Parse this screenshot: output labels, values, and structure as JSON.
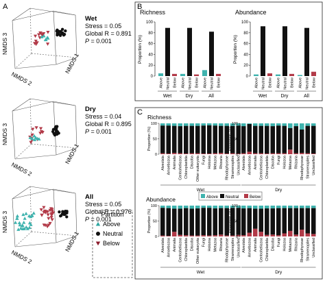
{
  "panels": {
    "A": "A",
    "B": "B",
    "C": "C"
  },
  "nmds": {
    "axes": [
      "NMDS 1",
      "NMDS 2",
      "NMDS 3"
    ],
    "plots": [
      {
        "title": "Wet",
        "stress": "Stress = 0.05",
        "globalR": "Global R = 0.891",
        "p": "P = 0.001"
      },
      {
        "title": "Dry",
        "stress": "Stress = 0.04",
        "globalR": "Global R = 0.895",
        "p": "P = 0.001"
      },
      {
        "title": "All",
        "stress": "Stress = 0.05",
        "globalR": "Global R = 0.976",
        "p": "P = 0.001"
      }
    ],
    "p_italic": "P",
    "p_rest": " = 0.001"
  },
  "legend": {
    "title": "Partition",
    "items": [
      {
        "label": "Above",
        "color": "#2ea6a0",
        "shape": "triangle-up"
      },
      {
        "label": "Neutral",
        "color": "#111111",
        "shape": "circle"
      },
      {
        "label": "Below",
        "color": "#8b1a2b",
        "shape": "triangle-down"
      }
    ]
  },
  "colors": {
    "above": "#3fb3ae",
    "neutral": "#111111",
    "below": "#b23a48"
  },
  "chart_data": [
    {
      "type": "bar",
      "title": "Richness",
      "ylabel": "Proportion (%)",
      "ylim": [
        0,
        100
      ],
      "groups": [
        "Wet",
        "Dry",
        "All"
      ],
      "categories": [
        "Above",
        "Neutral",
        "Below"
      ],
      "values": [
        [
          5,
          89,
          4
        ],
        [
          4,
          89,
          3
        ],
        [
          11,
          82,
          4
        ]
      ]
    },
    {
      "type": "bar",
      "title": "Abundance",
      "ylabel": "Proportion (%)",
      "ylim": [
        0,
        100
      ],
      "groups": [
        "Wet",
        "Dry",
        "All"
      ],
      "categories": [
        "Above",
        "Neutral",
        "Below"
      ],
      "values": [
        [
          3,
          92,
          5
        ],
        [
          3,
          92,
          4
        ],
        [
          2,
          89,
          8
        ]
      ]
    },
    {
      "type": "bar",
      "title": "Richness",
      "group": "Wet",
      "stacked": true,
      "ylabel": "Proportion (%)",
      "ylim": [
        0,
        100
      ],
      "categories": [
        "Alveolata",
        "Amoebozoa",
        "Animalia",
        "Centroheliozoa",
        "Chloroplastida",
        "Discoba",
        "Other eukaryota",
        "Fungi",
        "Holozoa",
        "Metazoa",
        "Rhizaria",
        "Rhodophyceae",
        "Stramenopiles",
        "Unclassified"
      ],
      "series": [
        {
          "name": "Neutral",
          "values": [
            90,
            91,
            88,
            88,
            90,
            89,
            89,
            91,
            92,
            90,
            88,
            90,
            89,
            91
          ]
        },
        {
          "name": "Below",
          "values": [
            3,
            2,
            4,
            3,
            2,
            3,
            3,
            2,
            2,
            3,
            4,
            2,
            3,
            2
          ]
        },
        {
          "name": "Above",
          "values": [
            7,
            7,
            8,
            9,
            8,
            8,
            8,
            7,
            6,
            7,
            8,
            8,
            8,
            7
          ]
        }
      ]
    },
    {
      "type": "bar",
      "title": "",
      "group": "Dry",
      "stacked": true,
      "ylabel": "Proportion (%)",
      "ylim": [
        0,
        100
      ],
      "categories": [
        "Alveolata",
        "Amoebozoa",
        "Animalia",
        "Centroheliozoa",
        "Chloroplastida",
        "Discoba",
        "Fungi",
        "Holozoa",
        "Metazoa",
        "Rhizaria",
        "Rhodophyceae",
        "Stramenopiles",
        "Unclassified"
      ],
      "series": [
        {
          "name": "Neutral",
          "values": [
            88,
            90,
            89,
            89,
            90,
            88,
            90,
            89,
            70,
            88,
            76,
            89,
            90
          ]
        },
        {
          "name": "Below",
          "values": [
            3,
            8,
            3,
            3,
            2,
            3,
            3,
            3,
            15,
            3,
            4,
            3,
            2
          ]
        },
        {
          "name": "Above",
          "values": [
            9,
            2,
            8,
            8,
            8,
            9,
            7,
            8,
            15,
            9,
            20,
            8,
            8
          ]
        }
      ]
    },
    {
      "type": "bar",
      "title": "Abundance",
      "group": "Wet",
      "stacked": true,
      "ylabel": "Proportion (%)",
      "ylim": [
        0,
        100
      ],
      "categories": [
        "Alveolata",
        "Amoebozoa",
        "Animalia",
        "Centroheliozoa",
        "Chloroplastida",
        "Discoba",
        "Other eukaryota",
        "Fungi",
        "Holozoa",
        "Metazoa",
        "Rhizaria",
        "Rhodophyceae",
        "Stramenopiles",
        "Unclassified"
      ],
      "series": [
        {
          "name": "Neutral",
          "values": [
            90,
            90,
            75,
            85,
            88,
            87,
            88,
            89,
            90,
            87,
            86,
            89,
            90,
            88
          ]
        },
        {
          "name": "Below",
          "values": [
            3,
            2,
            15,
            5,
            4,
            3,
            3,
            4,
            3,
            4,
            6,
            3,
            3,
            5
          ]
        },
        {
          "name": "Above",
          "values": [
            7,
            8,
            10,
            10,
            8,
            10,
            9,
            7,
            7,
            9,
            8,
            8,
            7,
            7
          ]
        }
      ]
    },
    {
      "type": "bar",
      "title": "",
      "group": "Dry",
      "stacked": true,
      "ylabel": "Proportion (%)",
      "ylim": [
        0,
        100
      ],
      "categories": [
        "Alveolata",
        "Amoebozoa",
        "Animalia",
        "Centroheliozoa",
        "Chloroplastida",
        "Discoba",
        "Fungi",
        "Holozoa",
        "Metazoa",
        "Rhizaria",
        "Rhodophyceae",
        "Stramenopiles",
        "Unclassified"
      ],
      "series": [
        {
          "name": "Neutral",
          "values": [
            87,
            80,
            65,
            75,
            86,
            85,
            88,
            82,
            74,
            86,
            70,
            82,
            84
          ]
        },
        {
          "name": "Below",
          "values": [
            4,
            12,
            25,
            15,
            5,
            6,
            4,
            10,
            18,
            6,
            22,
            10,
            8
          ]
        },
        {
          "name": "Above",
          "values": [
            9,
            8,
            10,
            10,
            9,
            9,
            8,
            8,
            8,
            8,
            8,
            8,
            8
          ]
        }
      ]
    }
  ],
  "stack_legend": [
    "Above",
    "Neutral",
    "Below"
  ],
  "group_labels": {
    "wet": "Wet",
    "dry": "Dry"
  }
}
